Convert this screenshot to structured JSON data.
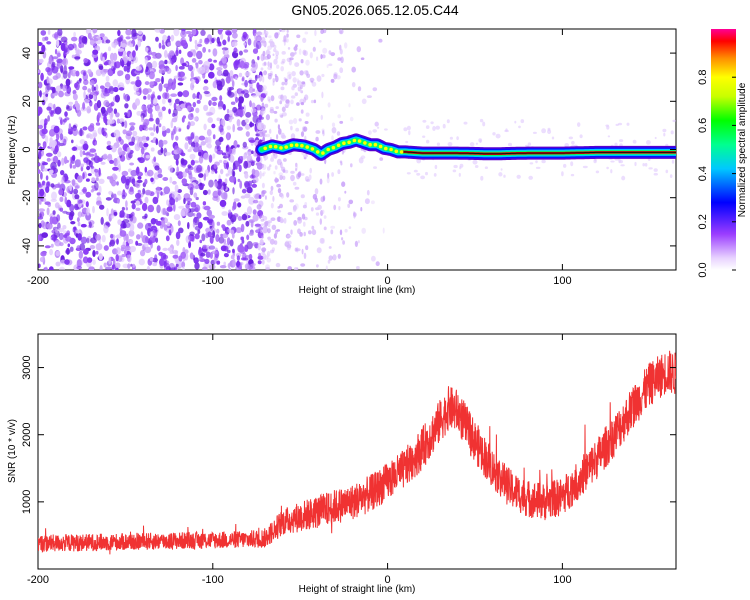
{
  "title": "GN05.2026.065.12.05.C44",
  "chart_data": [
    {
      "type": "heatmap",
      "xlabel": "Height of straight line (km)",
      "ylabel": "Frequency (Hz)",
      "xlim": [
        -200,
        165
      ],
      "ylim": [
        -50,
        50
      ],
      "xticks": [
        -200,
        -100,
        0,
        100
      ],
      "xtick_labels": [
        "-200",
        "-100",
        "0",
        "100"
      ],
      "yticks": [
        -40,
        -20,
        0,
        20,
        40
      ],
      "ytick_labels": [
        "-40",
        "-20",
        "0",
        "20",
        "40"
      ],
      "ridge": {
        "x": [
          -72,
          -66,
          -60,
          -54,
          -48,
          -42,
          -38,
          -34,
          -30,
          -26,
          -22,
          -18,
          -14,
          -10,
          -6,
          -2,
          2,
          6,
          10,
          20,
          40,
          60,
          80,
          100,
          120,
          140,
          165
        ],
        "y": [
          0,
          1.5,
          0.5,
          2,
          1.5,
          0,
          -2,
          0,
          1,
          2.5,
          3,
          4,
          3,
          2,
          2,
          0.5,
          0,
          -1,
          -1,
          -1.5,
          -1.5,
          -1.8,
          -1.5,
          -1.5,
          -1.2,
          -1.2,
          -1.2
        ]
      },
      "colorbar": {
        "label": "Normalized spectral amplitude",
        "range": [
          0,
          1
        ],
        "ticks": [
          0.0,
          0.2,
          0.4,
          0.6,
          0.8
        ],
        "tick_labels": [
          "0.0",
          "0.2",
          "0.4",
          "0.6",
          "0.8"
        ]
      }
    },
    {
      "type": "line",
      "xlabel": "Height of straight line (km)",
      "ylabel": "SNR (10 * v/v)",
      "xlim": [
        -200,
        165
      ],
      "ylim": [
        0,
        3500
      ],
      "xticks": [
        -200,
        -100,
        0,
        100
      ],
      "xtick_labels": [
        "-200",
        "-100",
        "0",
        "100"
      ],
      "yticks": [
        1000,
        2000,
        3000
      ],
      "ytick_labels": [
        "1000",
        "2000",
        "3000"
      ],
      "color": "#f03232",
      "series": [
        {
          "x": [
            -200,
            -180,
            -160,
            -140,
            -120,
            -100,
            -80,
            -70,
            -60,
            -50,
            -40,
            -30,
            -20,
            -10,
            0,
            10,
            20,
            30,
            35,
            40,
            50,
            60,
            70,
            80,
            90,
            100,
            110,
            120,
            130,
            140,
            150,
            160,
            165
          ],
          "values": [
            380,
            390,
            400,
            410,
            420,
            430,
            440,
            460,
            700,
            780,
            850,
            930,
            1000,
            1120,
            1300,
            1500,
            1800,
            2200,
            2400,
            2350,
            1900,
            1500,
            1200,
            1050,
            1000,
            1080,
            1350,
            1650,
            2000,
            2400,
            2750,
            2950,
            2900
          ],
          "noise": [
            130,
            130,
            130,
            130,
            130,
            130,
            130,
            150,
            200,
            230,
            250,
            260,
            270,
            280,
            280,
            300,
            320,
            330,
            330,
            330,
            320,
            300,
            290,
            280,
            280,
            290,
            300,
            310,
            320,
            320,
            330,
            330,
            330
          ]
        }
      ]
    }
  ]
}
